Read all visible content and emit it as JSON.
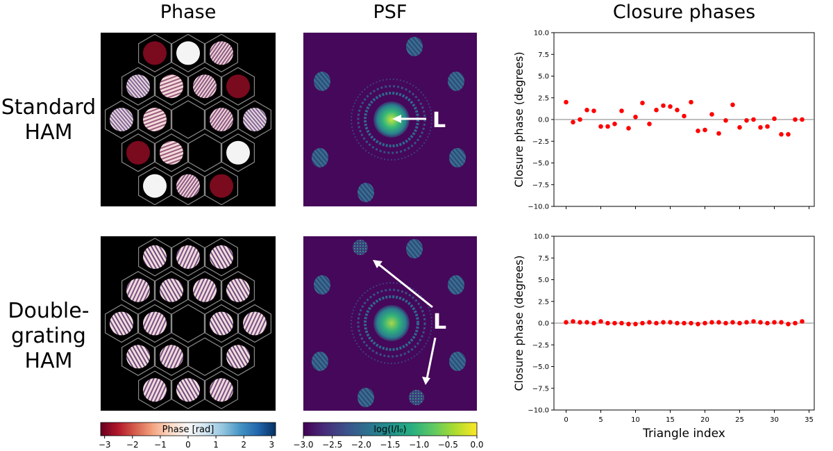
{
  "column_titles": [
    "Phase",
    "PSF",
    "Closure phases"
  ],
  "row_labels": [
    [
      "Standard",
      "HAM"
    ],
    [
      "Double-",
      "grating",
      "HAM"
    ]
  ],
  "psf_annotation_label": "L",
  "colorbars": {
    "phase": {
      "label": "Phase [rad]",
      "ticks": [
        "−3",
        "−2",
        "−1",
        "0",
        "1",
        "2",
        "3"
      ],
      "range": [
        -3.14159,
        3.14159
      ],
      "colors": [
        "#67001f",
        "#b2182b",
        "#d6604d",
        "#f4a582",
        "#fddbc7",
        "#f7f7f7",
        "#d1e5f0",
        "#92c5de",
        "#4393c3",
        "#2166ac",
        "#053061"
      ]
    },
    "psf": {
      "label": "log(I/I₀)",
      "ticks": [
        "−3.0",
        "−2.5",
        "−2.0",
        "−1.5",
        "−1.0",
        "−0.5",
        "0.0"
      ],
      "range": [
        -3.0,
        0.0
      ],
      "colors": [
        "#440154",
        "#472d7b",
        "#3b528b",
        "#2c728e",
        "#21918c",
        "#28ae80",
        "#5ec962",
        "#addc30",
        "#fde725"
      ]
    }
  },
  "chart_data": [
    {
      "type": "scatter",
      "title": "",
      "xlabel": "",
      "ylabel": "Closure phase (degrees)",
      "xlim": [
        -1.75,
        35.75
      ],
      "ylim": [
        -10.0,
        10.0
      ],
      "yticks": [
        "10.0",
        "7.5",
        "5.0",
        "2.5",
        "0.0",
        "−2.5",
        "−5.0",
        "−7.5",
        "−10.0"
      ],
      "xticks": [],
      "marker_color": "#ff0000",
      "reference_line": 0,
      "x": [
        0,
        1,
        2,
        3,
        4,
        5,
        6,
        7,
        8,
        9,
        10,
        11,
        12,
        13,
        14,
        15,
        16,
        17,
        18,
        19,
        20,
        21,
        22,
        23,
        24,
        25,
        26,
        27,
        28,
        29,
        30,
        31,
        32,
        33,
        34
      ],
      "y": [
        2.0,
        -0.3,
        0.0,
        1.1,
        1.0,
        -0.8,
        -0.8,
        -0.5,
        1.0,
        -1.0,
        0.3,
        1.9,
        -0.5,
        1.1,
        1.6,
        1.5,
        1.1,
        0.4,
        2.0,
        -1.3,
        -1.2,
        0.6,
        -1.6,
        -0.1,
        1.7,
        -0.9,
        -0.1,
        0.0,
        -0.9,
        -0.8,
        0.1,
        -1.7,
        -1.7,
        0.0,
        0.0
      ]
    },
    {
      "type": "scatter",
      "title": "",
      "xlabel": "Triangle index",
      "ylabel": "Closure phase (degrees)",
      "xlim": [
        -1.75,
        35.75
      ],
      "ylim": [
        -10.0,
        10.0
      ],
      "yticks": [
        "10.0",
        "7.5",
        "5.0",
        "2.5",
        "0.0",
        "−2.5",
        "−5.0",
        "−7.5",
        "−10.0"
      ],
      "xticks": [
        "0",
        "5",
        "10",
        "15",
        "20",
        "25",
        "30",
        "35"
      ],
      "marker_color": "#ff0000",
      "reference_line": 0,
      "x": [
        0,
        1,
        2,
        3,
        4,
        5,
        6,
        7,
        8,
        9,
        10,
        11,
        12,
        13,
        14,
        15,
        16,
        17,
        18,
        19,
        20,
        21,
        22,
        23,
        24,
        25,
        26,
        27,
        28,
        29,
        30,
        31,
        32,
        33,
        34
      ],
      "y": [
        0.1,
        0.2,
        0.1,
        0.1,
        0.0,
        0.2,
        0.0,
        0.0,
        0.0,
        -0.1,
        -0.1,
        0.0,
        0.1,
        0.0,
        0.1,
        0.1,
        0.0,
        0.0,
        0.0,
        -0.1,
        0.0,
        0.1,
        0.1,
        0.0,
        0.1,
        0.0,
        0.1,
        0.2,
        0.1,
        0.0,
        0.1,
        0.1,
        -0.1,
        0.0,
        0.2
      ]
    }
  ]
}
